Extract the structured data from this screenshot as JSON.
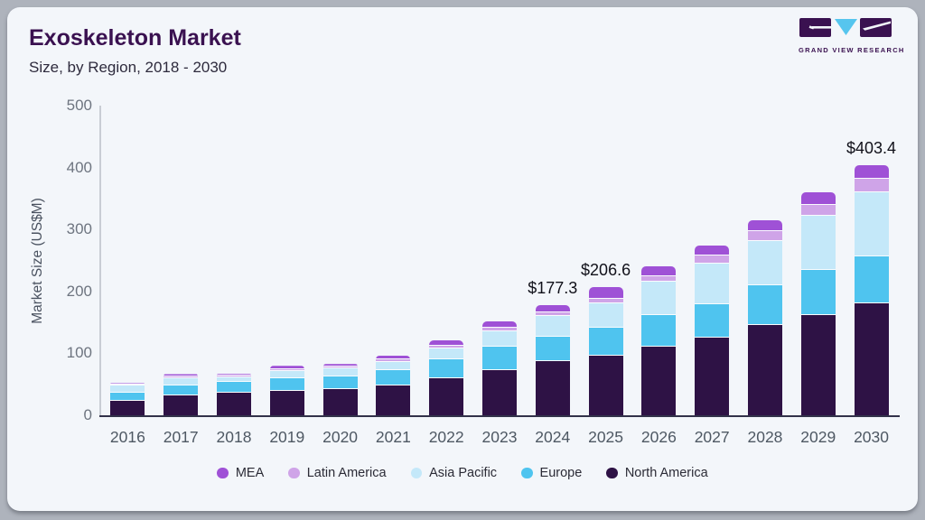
{
  "header": {
    "title": "Exoskeleton Market",
    "subtitle": "Size, by Region, 2018 - 2030",
    "logo_caption": "GRAND VIEW RESEARCH"
  },
  "colors": {
    "card_bg": "#f3f6fa",
    "frame": "#aeb3bc",
    "title": "#3a1150",
    "logo_purple": "#3a1150",
    "logo_blue": "#56c5ee"
  },
  "chart_data": {
    "type": "bar",
    "stacked": true,
    "title": "Exoskeleton Market Size, by Region, 2018 - 2030",
    "xlabel": "",
    "ylabel": "Market Size (US$M)",
    "ylim": [
      0,
      500
    ],
    "yticks": [
      0,
      100,
      200,
      300,
      400,
      500
    ],
    "grid": false,
    "legend_position": "bottom",
    "categories": [
      "2016",
      "2017",
      "2018",
      "2019",
      "2020",
      "2021",
      "2022",
      "2023",
      "2024",
      "2025",
      "2026",
      "2027",
      "2028",
      "2029",
      "2030"
    ],
    "series": [
      {
        "name": "North America",
        "color": "#2e1245",
        "values": [
          24,
          32,
          36,
          40,
          42,
          48,
          60,
          73,
          87,
          96,
          111,
          125,
          146,
          162,
          181
        ]
      },
      {
        "name": "Europe",
        "color": "#4fc4ef",
        "values": [
          13,
          16,
          17.5,
          20,
          20,
          25,
          30,
          38,
          40,
          46,
          51,
          55,
          64,
          72,
          76
        ]
      },
      {
        "name": "Asia Pacific",
        "color": "#c4e8f9",
        "values": [
          11,
          12,
          8,
          11,
          14,
          13,
          18,
          24,
          33,
          39,
          54,
          65,
          72,
          88,
          102.4
        ]
      },
      {
        "name": "Latin America",
        "color": "#cfa4e8",
        "values": [
          1.5,
          2.5,
          2.5,
          3.5,
          3,
          4,
          4.5,
          6,
          6.5,
          7,
          8,
          12.5,
          15.5,
          17.5,
          23
        ]
      },
      {
        "name": "MEA",
        "color": "#9f51d6",
        "values": [
          2.5,
          4,
          3,
          5.5,
          4,
          7,
          8,
          10,
          10.8,
          18.6,
          16,
          16.5,
          17.5,
          21,
          21
        ]
      }
    ],
    "totals_labels": {
      "2024": "$177.3",
      "2025": "$206.6",
      "2030": "$403.4"
    }
  },
  "legend_order": [
    "MEA",
    "Latin America",
    "Asia Pacific",
    "Europe",
    "North America"
  ]
}
